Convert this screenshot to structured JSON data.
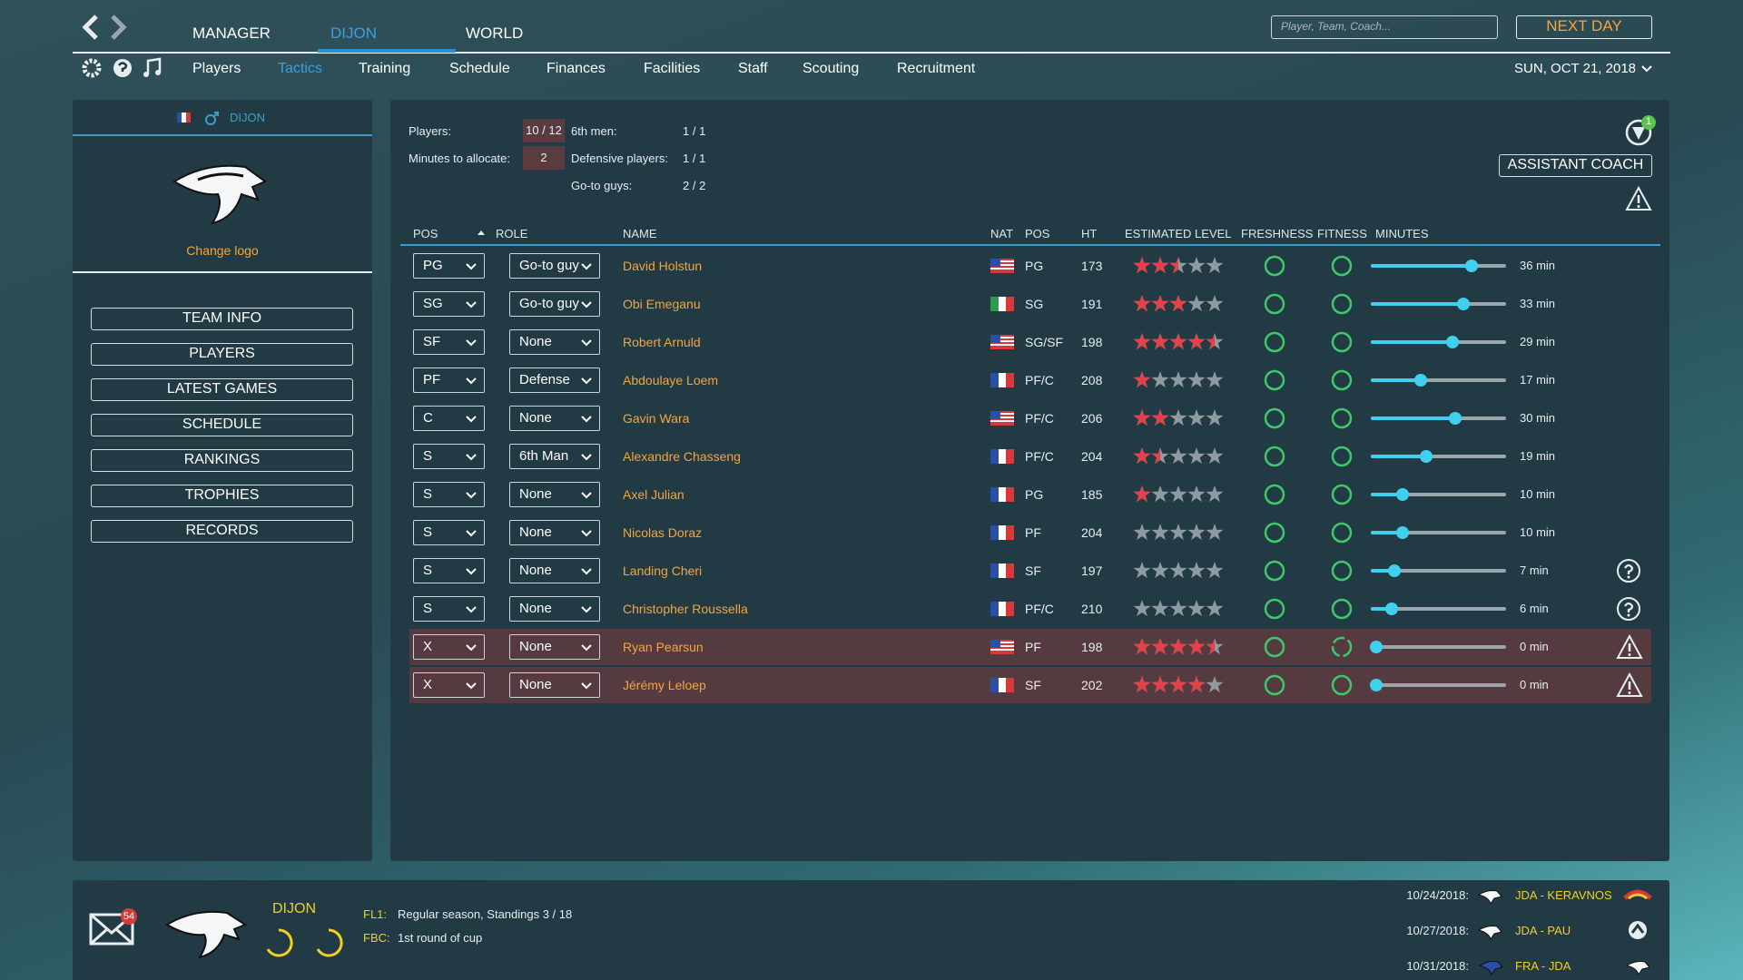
{
  "top": {
    "tabs": [
      "MANAGER",
      "DIJON",
      "WORLD"
    ],
    "search_placeholder": "Player, Team, Coach...",
    "next_day": "NEXT DAY"
  },
  "nav": {
    "items": [
      "Players",
      "Tactics",
      "Training",
      "Schedule",
      "Finances",
      "Facilities",
      "Staff",
      "Scouting",
      "Recruitment"
    ],
    "date": "SUN, OCT 21, 2018"
  },
  "sidebar": {
    "team": "DIJON",
    "change_logo": "Change logo",
    "buttons": [
      "TEAM INFO",
      "PLAYERS",
      "LATEST GAMES",
      "SCHEDULE",
      "RANKINGS",
      "TROPHIES",
      "RECORDS"
    ]
  },
  "summary": {
    "left": [
      {
        "label": "Players:",
        "value": "10 / 12"
      },
      {
        "label": "Minutes to allocate:",
        "value": "2"
      }
    ],
    "right": [
      {
        "label": "6th men:",
        "value": "1 / 1"
      },
      {
        "label": "Defensive players:",
        "value": "1 / 1"
      },
      {
        "label": "Go-to guys:",
        "value": "2 / 2"
      }
    ]
  },
  "notification_count": "1",
  "assistant_coach": "ASSISTANT COACH",
  "table": {
    "headers": [
      "POS",
      "ROLE",
      "NAME",
      "NAT",
      "POS",
      "HT",
      "ESTIMATED LEVEL",
      "FRESHNESS",
      "FITNESS",
      "MINUTES"
    ],
    "rows": [
      {
        "pos": "PG",
        "role": "Go-to guy",
        "name": "David Holstun",
        "position": "PG",
        "ht": 173,
        "level": 2.5,
        "minutes": {
          "value": 36,
          "label": "36 min"
        }
      },
      {
        "pos": "SG",
        "role": "Go-to guy",
        "name": "Obi Emeganu",
        "position": "SG",
        "ht": 191,
        "level": 3,
        "minutes": {
          "value": 33,
          "label": "33 min"
        }
      },
      {
        "pos": "SF",
        "role": "None",
        "name": "Robert Arnuld",
        "position": "SG/SF",
        "ht": 198,
        "level": 4.5,
        "minutes": {
          "value": 29,
          "label": "29 min"
        }
      },
      {
        "pos": "PF",
        "role": "Defense",
        "name": "Abdoulaye Loem",
        "position": "PF/C",
        "ht": 208,
        "level": 1,
        "minutes": {
          "value": 17,
          "label": "17 min"
        }
      },
      {
        "pos": "C",
        "role": "None",
        "name": "Gavin Wara",
        "position": "PF/C",
        "ht": 206,
        "level": 2,
        "minutes": {
          "value": 30,
          "label": "30 min"
        }
      },
      {
        "pos": "S",
        "role": "6th Man",
        "name": "Alexandre Chasseng",
        "position": "PF/C",
        "ht": 204,
        "level": 1.5,
        "minutes": {
          "value": 19,
          "label": "19 min"
        }
      },
      {
        "pos": "S",
        "role": "None",
        "name": "Axel Julian",
        "position": "PG",
        "ht": 185,
        "level": 1,
        "minutes": {
          "value": 10,
          "label": "10 min"
        }
      },
      {
        "pos": "S",
        "role": "None",
        "name": "Nicolas Doraz",
        "position": "PF",
        "ht": 204,
        "level": 0,
        "minutes": {
          "value": 10,
          "label": "10 min"
        }
      },
      {
        "pos": "S",
        "role": "None",
        "name": "Landing Cheri",
        "position": "SF",
        "ht": 197,
        "level": 0,
        "minutes": {
          "value": 7,
          "label": "7 min"
        }
      },
      {
        "pos": "S",
        "role": "None",
        "name": "Christopher Roussella",
        "position": "PF/C",
        "ht": 210,
        "level": 0,
        "minutes": {
          "value": 6,
          "label": "6 min"
        }
      },
      {
        "pos": "X",
        "role": "None",
        "name": "Ryan Pearsun",
        "position": "PF",
        "ht": 198,
        "level": 4.5,
        "minutes": {
          "value": 0,
          "label": "0 min"
        }
      },
      {
        "pos": "X",
        "role": "None",
        "name": "Jérémy Leloep",
        "position": "SF",
        "ht": 202,
        "level": 4,
        "minutes": {
          "value": 0,
          "label": "0 min"
        }
      }
    ]
  },
  "footer": {
    "mail_count": "54",
    "team": "DIJON",
    "competitions": [
      {
        "code": "FL1:",
        "text": "Regular season, Standings 3 / 18"
      },
      {
        "code": "FBC:",
        "text": "1st round of cup"
      }
    ],
    "schedule": [
      {
        "date": "10/24/2018:",
        "match": "JDA - KERAVNOS"
      },
      {
        "date": "10/27/2018:",
        "match": "JDA - PAU"
      },
      {
        "date": "10/31/2018:",
        "match": "FRA - JDA"
      }
    ]
  }
}
